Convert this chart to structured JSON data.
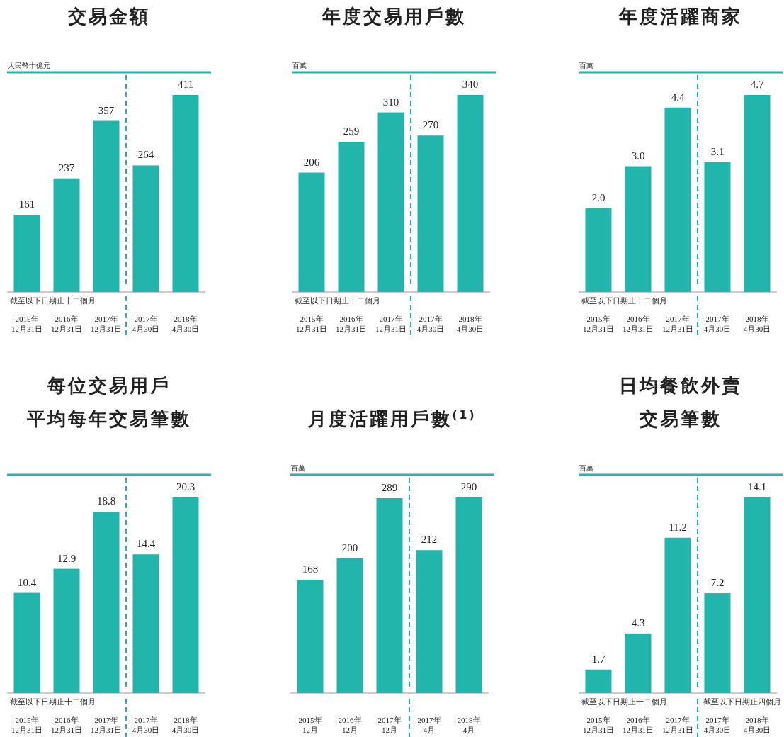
{
  "chart_data": [
    {
      "type": "bar",
      "title": "交易金額",
      "ylabel": "人民幣十億元",
      "categories": [
        "2015年\n12月31日",
        "2016年\n12月31日",
        "2017年\n12月31日",
        "2017年\n4月30日",
        "2018年\n4月30日"
      ],
      "values": [
        161,
        237,
        357,
        264,
        411
      ],
      "color": "#21b5ab",
      "data_labels": true,
      "annotations": [
        "截至以下日期止十二個月"
      ]
    },
    {
      "type": "bar",
      "title": "年度交易用戶數",
      "ylabel": "百萬",
      "categories": [
        "2015年\n12月31日",
        "2016年\n12月31日",
        "2017年\n12月31日",
        "2017年\n4月30日",
        "2018年\n4月30日"
      ],
      "values": [
        206,
        259,
        310,
        270,
        340
      ],
      "color": "#21b5ab",
      "data_labels": true,
      "annotations": [
        "截至以下日期止十二個月"
      ]
    },
    {
      "type": "bar",
      "title": "年度活躍商家",
      "ylabel": "百萬",
      "categories": [
        "2015年\n12月31日",
        "2016年\n12月31日",
        "2017年\n12月31日",
        "2017年\n4月30日",
        "2018年\n4月30日"
      ],
      "values": [
        2.0,
        3.0,
        4.4,
        3.1,
        4.7
      ],
      "value_labels": [
        "2.0",
        "3.0",
        "4.4",
        "3.1",
        "4.7"
      ],
      "color": "#21b5ab",
      "annotations": [
        "截至以下日期止十二個月"
      ]
    },
    {
      "type": "bar",
      "title": "每位交易用戶",
      "subtitle": "平均每年交易筆數",
      "categories": [
        "2015年\n12月31日",
        "2016年\n12月31日",
        "2017年\n12月31日",
        "2017年\n4月30日",
        "2018年\n4月30日"
      ],
      "values": [
        10.4,
        12.9,
        18.8,
        14.4,
        20.3
      ],
      "color": "#21b5ab",
      "data_labels": true,
      "annotations": [
        "截至以下日期止十二個月"
      ]
    },
    {
      "type": "bar",
      "title": "月度活躍用戶數$^{(1)}$",
      "ylabel": "百萬",
      "categories": [
        "2015年\n12月",
        "2016年\n12月",
        "2017年\n12月",
        "2017年\n4月",
        "2018年\n4月"
      ],
      "values": [
        168,
        200,
        289,
        212,
        290
      ],
      "color": "#21b5ab",
      "data_labels": true
    },
    {
      "type": "bar",
      "title": "日均餐飲外賣",
      "subtitle": "交易筆數",
      "ylabel": "百萬",
      "categories": [
        "2015年\n12月31日",
        "2016年\n12月31日",
        "2017年\n12月31日",
        "2017年\n4月30日",
        "2018年\n4月30日"
      ],
      "values": [
        1.7,
        4.3,
        11.2,
        7.2,
        14.1
      ],
      "color": "#21b5ab",
      "data_labels": true,
      "annotations": [
        "截至以下日期止十二個月",
        "截至以下日期止四個月"
      ]
    }
  ]
}
